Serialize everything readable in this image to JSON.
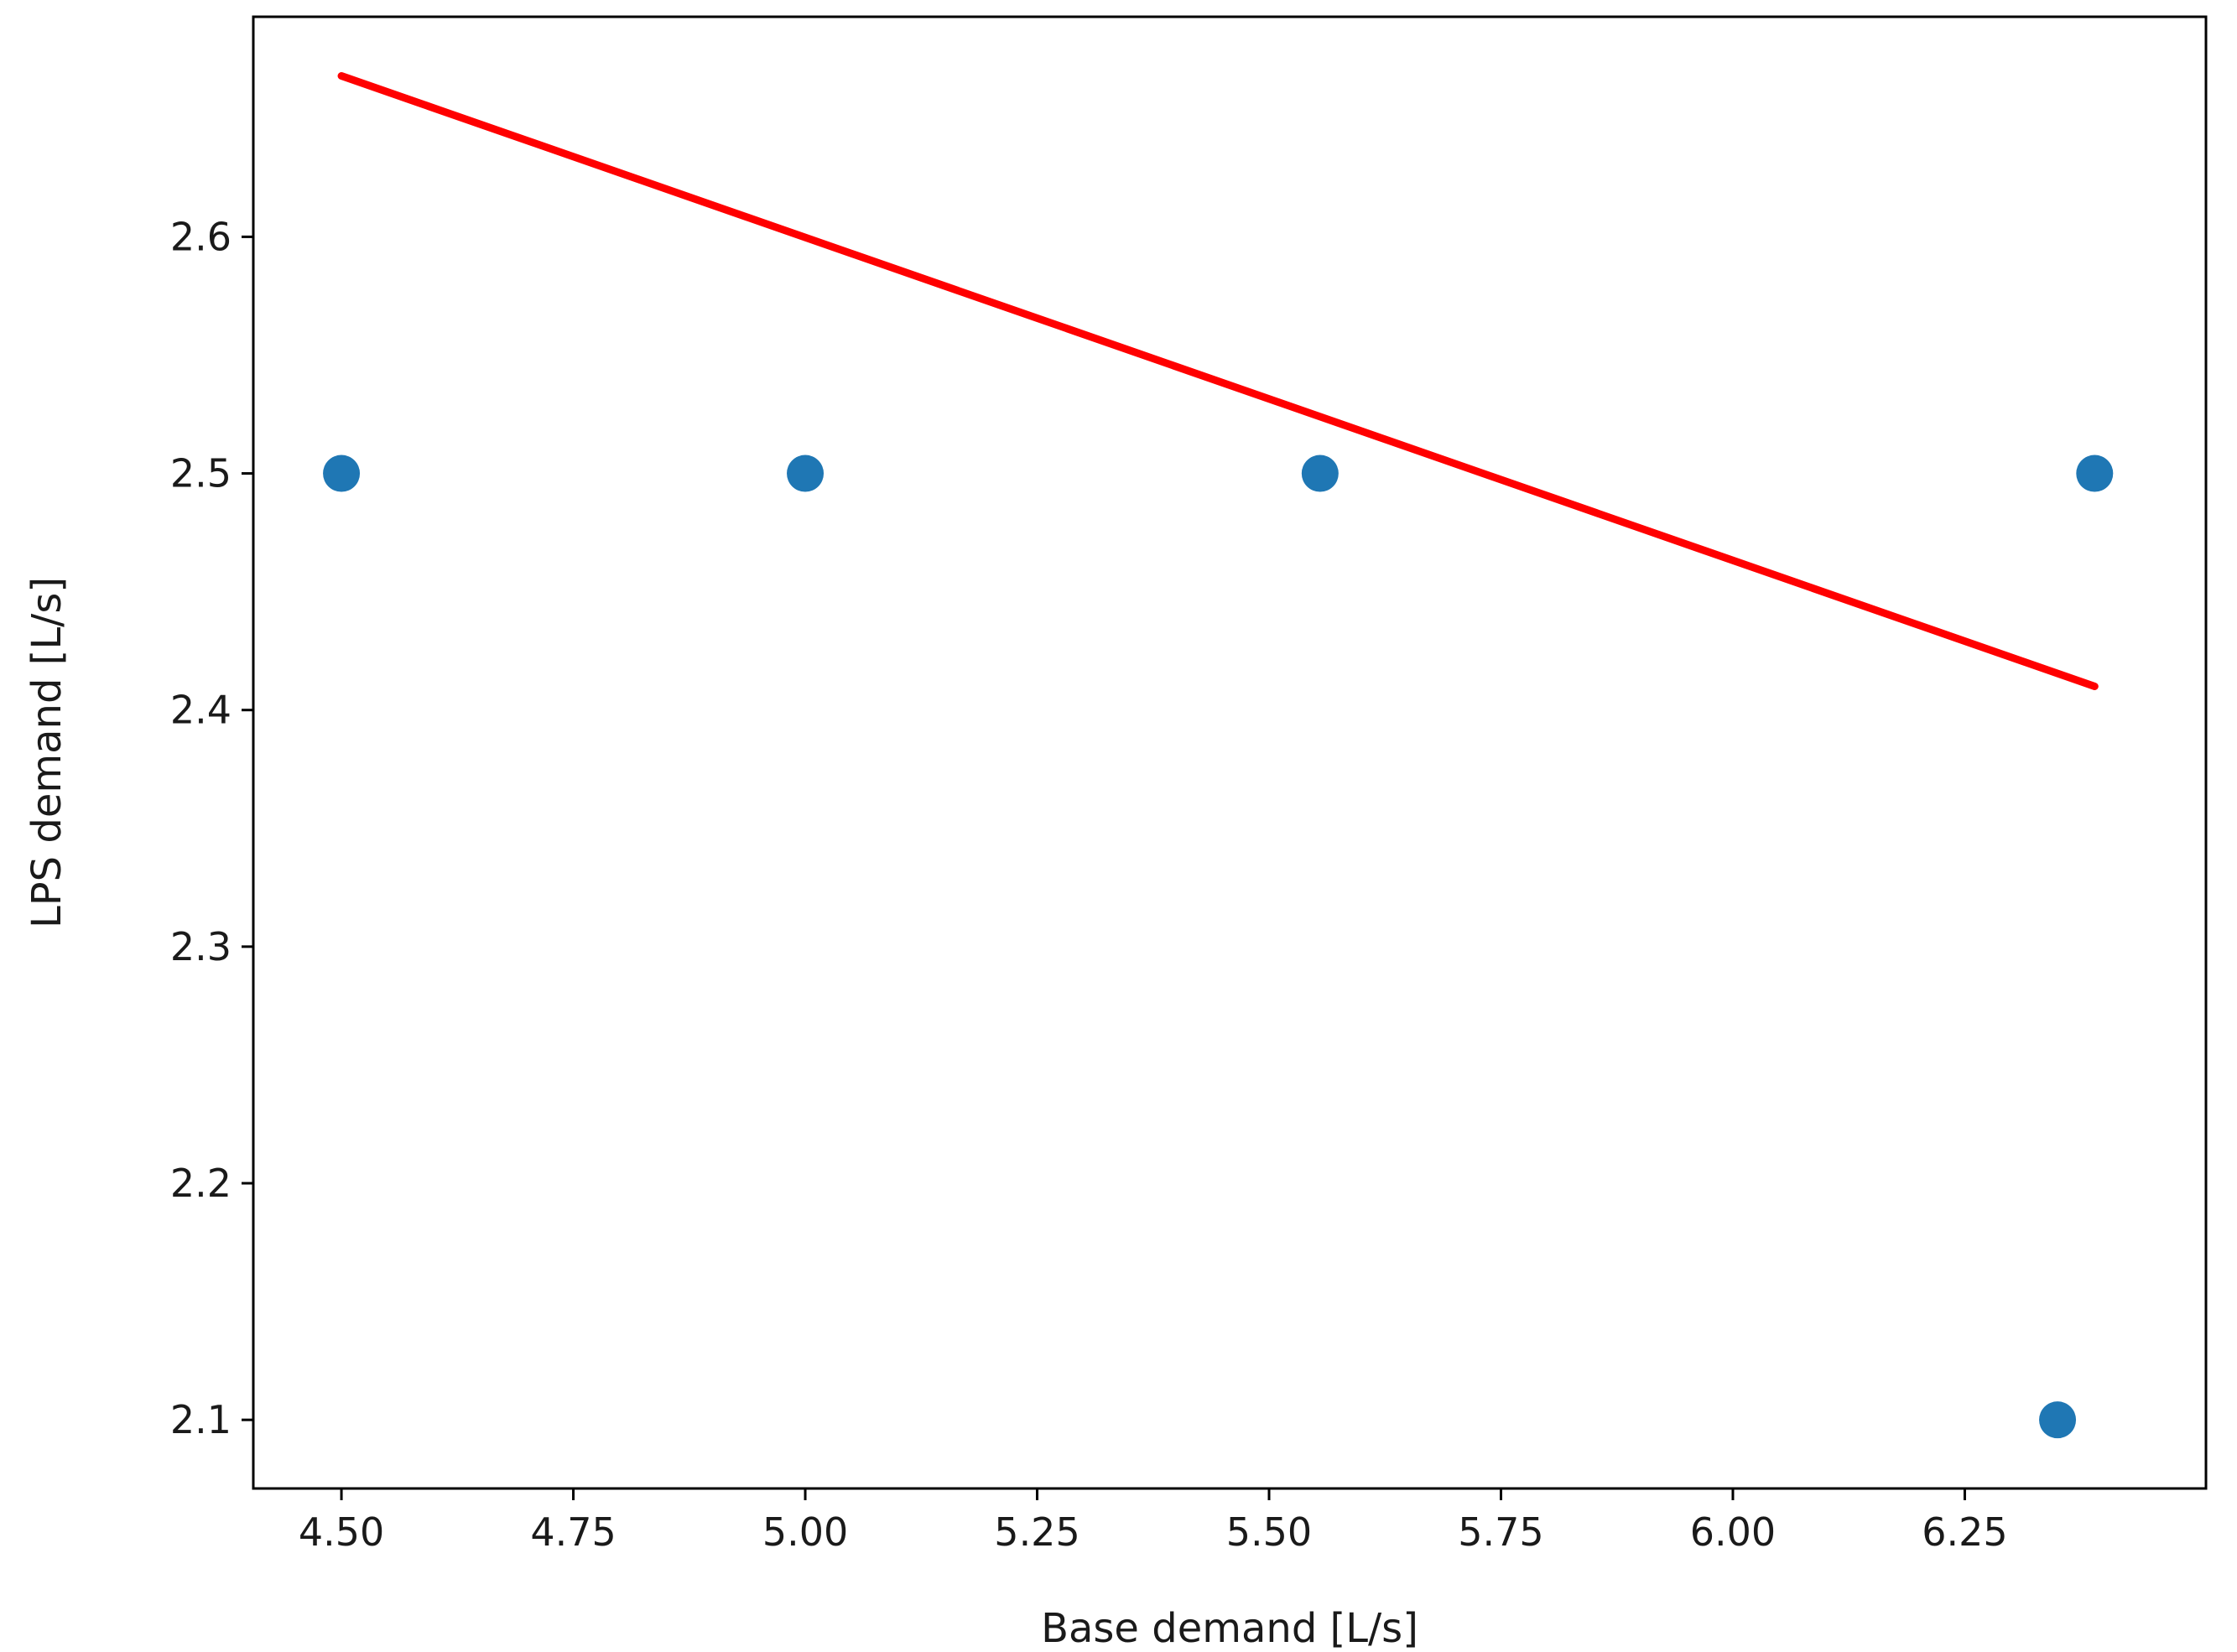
{
  "chart_data": {
    "type": "scatter",
    "title": "",
    "xlabel": "Base demand [L/s]",
    "ylabel": "LPS demand [L/s]",
    "xlim": [
      4.405,
      6.51
    ],
    "ylim": [
      2.071,
      2.693
    ],
    "grid": false,
    "legend": "none",
    "x_ticks": [
      4.5,
      4.75,
      5.0,
      5.25,
      5.5,
      5.75,
      6.0,
      6.25
    ],
    "x_tick_labels": [
      "4.50",
      "4.75",
      "5.00",
      "5.25",
      "5.50",
      "5.75",
      "6.00",
      "6.25"
    ],
    "y_ticks": [
      2.1,
      2.2,
      2.3,
      2.4,
      2.5,
      2.6
    ],
    "y_tick_labels": [
      "2.1",
      "2.2",
      "2.3",
      "2.4",
      "2.5",
      "2.6"
    ],
    "series": [
      {
        "kind": "scatter",
        "color": "#1f77b4",
        "points": [
          {
            "x": 4.5,
            "y": 2.5
          },
          {
            "x": 5.0,
            "y": 2.5
          },
          {
            "x": 5.555,
            "y": 2.5
          },
          {
            "x": 6.39,
            "y": 2.5
          },
          {
            "x": 6.35,
            "y": 2.1
          }
        ]
      },
      {
        "kind": "line",
        "color": "#ff0000",
        "points": [
          {
            "x": 4.5,
            "y": 2.668
          },
          {
            "x": 6.39,
            "y": 2.41
          }
        ]
      }
    ]
  }
}
